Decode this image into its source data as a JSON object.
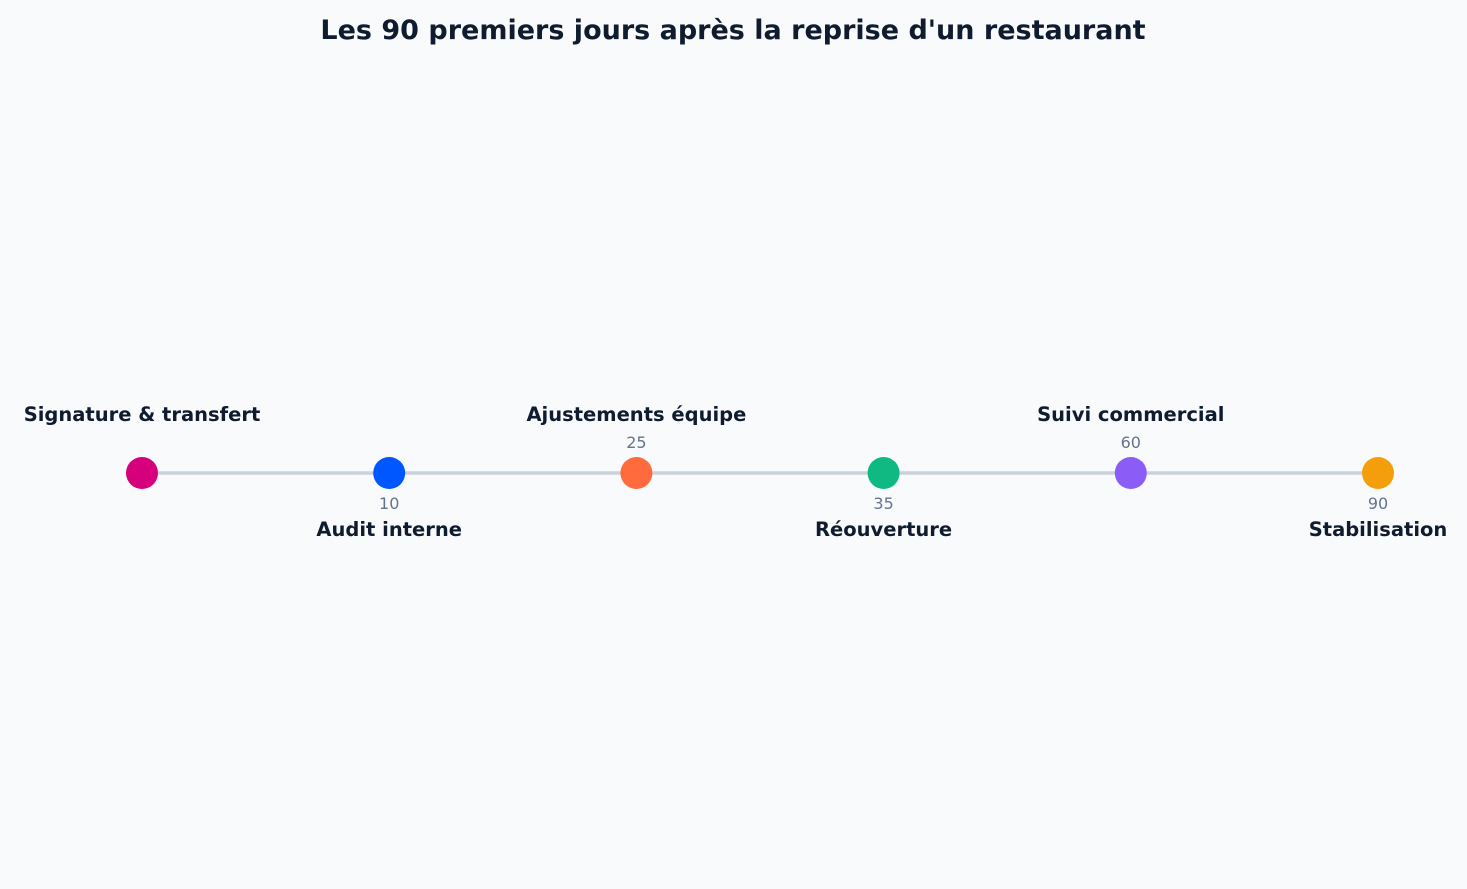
{
  "title": "Les 90 premiers jours après la reprise d'un restaurant",
  "colors": {
    "background": "#f8fafc",
    "title": "#0f1b2e",
    "label": "#0f1b2e",
    "day": "#64748b",
    "line": "#cbd2dc"
  },
  "events": [
    {
      "label": "Signature & transfert",
      "day": "",
      "color": "#d6007c",
      "side": "above"
    },
    {
      "label": "Audit interne",
      "day": "10",
      "color": "#0057ff",
      "side": "below"
    },
    {
      "label": "Ajustements équipe",
      "day": "25",
      "color": "#ff6b3d",
      "side": "above"
    },
    {
      "label": "Réouverture",
      "day": "35",
      "color": "#10b981",
      "side": "below"
    },
    {
      "label": "Suivi commercial",
      "day": "60",
      "color": "#8b5cf6",
      "side": "above"
    },
    {
      "label": "Stabilisation",
      "day": "90",
      "color": "#f59e0b",
      "side": "below"
    }
  ]
}
